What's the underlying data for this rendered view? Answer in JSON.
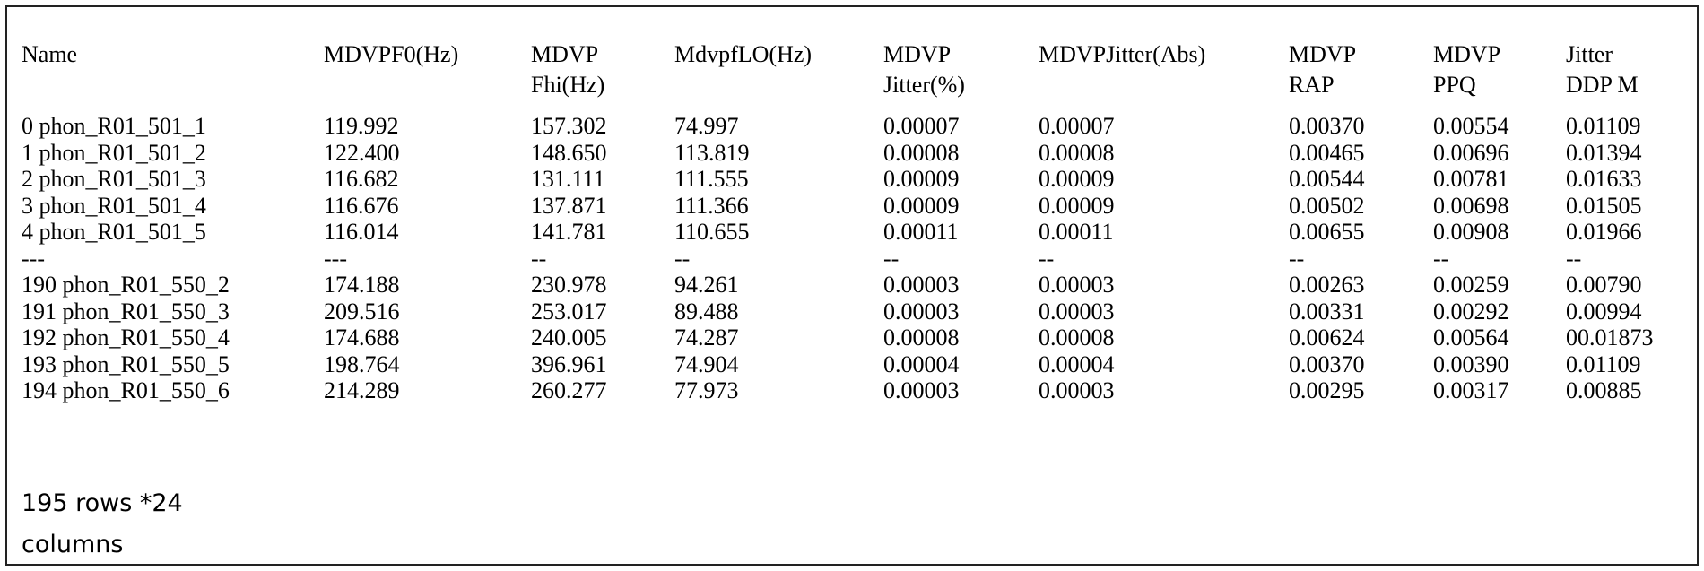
{
  "table": {
    "header": [
      [
        "Name"
      ],
      [
        "MDVPF0(Hz)"
      ],
      [
        "MDVP",
        "Fhi(Hz)"
      ],
      [
        "MdvpfLO(Hz)"
      ],
      [
        "MDVP",
        "Jitter(%)"
      ],
      [
        "MDVPJitter(Abs)"
      ],
      [
        "MDVP",
        "RAP"
      ],
      [
        "MDVP",
        "PPQ"
      ],
      [
        "Jitter",
        "DDP M"
      ]
    ],
    "rows": [
      [
        "0 phon_R01_501_1",
        "119.992",
        "157.302",
        "74.997",
        "0.00007",
        "0.00007",
        "0.00370",
        "0.00554",
        "0.01109"
      ],
      [
        "1 phon_R01_501_2",
        "122.400",
        "148.650",
        "113.819",
        "0.00008",
        "0.00008",
        "0.00465",
        "0.00696",
        "0.01394"
      ],
      [
        "2 phon_R01_501_3",
        "116.682",
        "131.111",
        "111.555",
        "0.00009",
        "0.00009",
        "0.00544",
        "0.00781",
        "0.01633"
      ],
      [
        "3 phon_R01_501_4",
        "116.676",
        "137.871",
        "111.366",
        "0.00009",
        "0.00009",
        "0.00502",
        "0.00698",
        "0.01505"
      ],
      [
        "4 phon_R01_501_5",
        "116.014",
        "141.781",
        "110.655",
        "0.00011",
        "0.00011",
        "0.00655",
        "0.00908",
        "0.01966"
      ],
      [
        "---",
        "---",
        "--",
        "--",
        "--",
        "--",
        "--",
        "--",
        "--"
      ],
      [
        "190 phon_R01_550_2",
        "174.188",
        "230.978",
        "94.261",
        "0.00003",
        "0.00003",
        "0.00263",
        "0.00259",
        "0.00790"
      ],
      [
        "191 phon_R01_550_3",
        "209.516",
        "253.017",
        "89.488",
        "0.00003",
        "0.00003",
        "0.00331",
        "0.00292",
        "0.00994"
      ],
      [
        "192 phon_R01_550_4",
        "174.688",
        "240.005",
        "74.287",
        "0.00008",
        "0.00008",
        "0.00624",
        "0.00564",
        "00.01873"
      ],
      [
        "193 phon_R01_550_5",
        "198.764",
        "396.961",
        "74.904",
        "0.00004",
        "0.00004",
        "0.00370",
        "0.00390",
        "0.01109"
      ],
      [
        "194 phon_R01_550_6",
        "214.289",
        "260.277",
        "77.973",
        "0.00003",
        "0.00003",
        "0.00295",
        "0.00317",
        "0.00885"
      ]
    ],
    "footer": [
      "195 rows *24",
      "columns"
    ]
  }
}
